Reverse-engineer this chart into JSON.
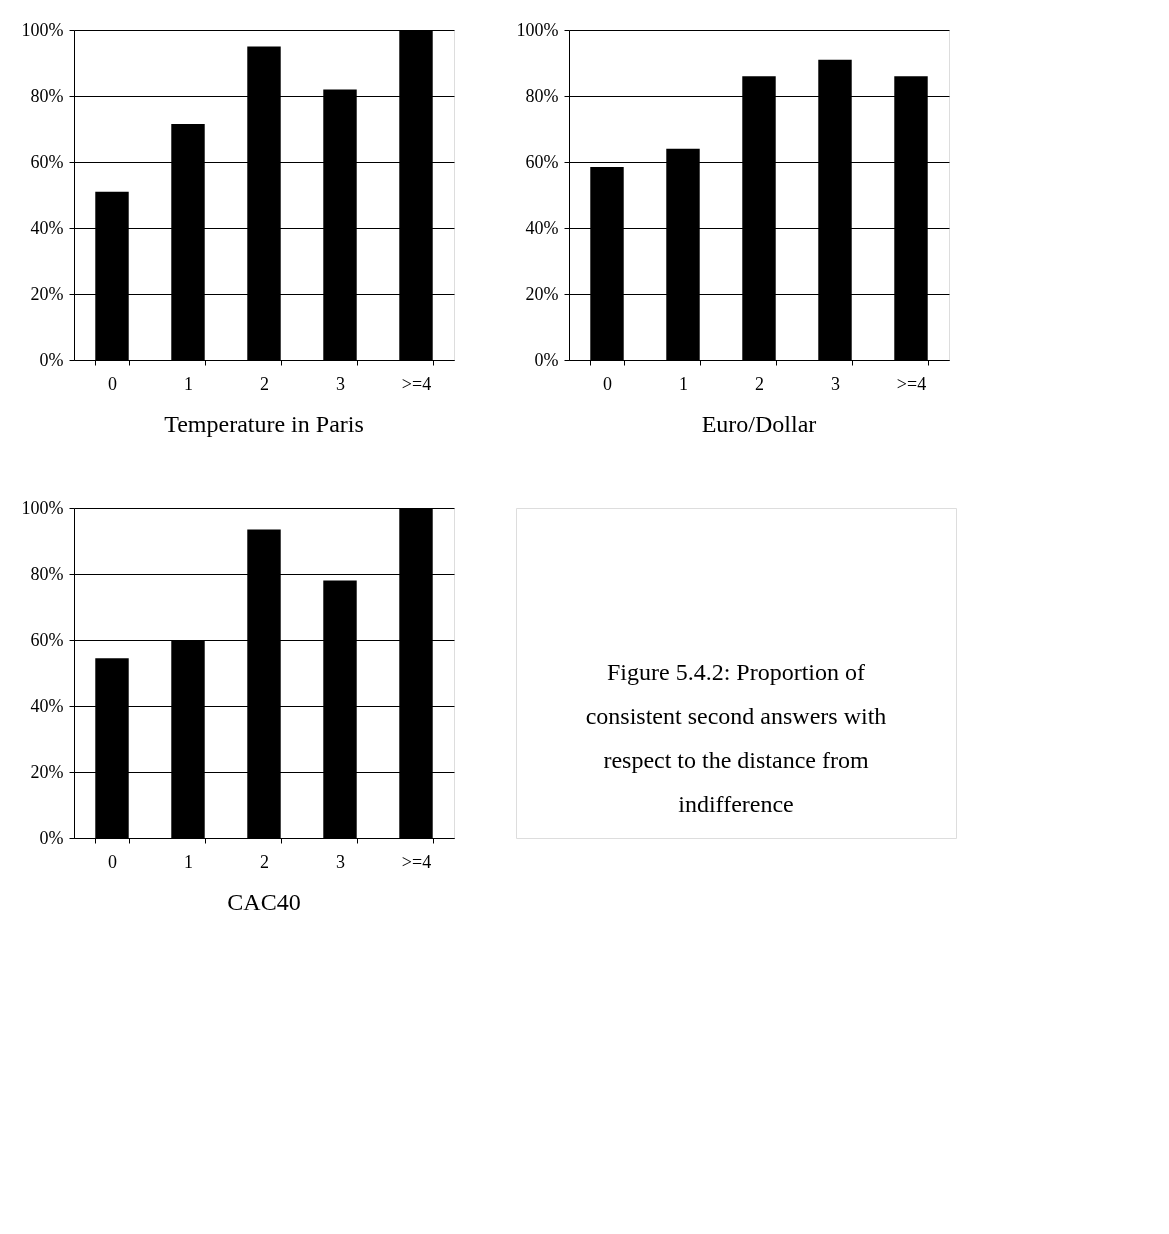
{
  "chart_data": [
    {
      "type": "bar",
      "title": "Temperature in Paris",
      "categories": [
        "0",
        "1",
        "2",
        "3",
        ">=4"
      ],
      "values": [
        51,
        71.5,
        95,
        82,
        100
      ],
      "color": "#000000",
      "ylim": [
        0,
        100
      ],
      "yticks": [
        {
          "value": 0,
          "label": "0%"
        },
        {
          "value": 20,
          "label": "20%"
        },
        {
          "value": 40,
          "label": "40%"
        },
        {
          "value": 60,
          "label": "60%"
        },
        {
          "value": 80,
          "label": "80%"
        },
        {
          "value": 100,
          "label": "100%"
        }
      ],
      "grid": "y"
    },
    {
      "type": "bar",
      "title": "Euro/Dollar",
      "categories": [
        "0",
        "1",
        "2",
        "3",
        ">=4"
      ],
      "values": [
        58.5,
        64,
        86,
        91,
        86
      ],
      "color": "#000000",
      "ylim": [
        0,
        100
      ],
      "yticks": [
        {
          "value": 0,
          "label": "0%"
        },
        {
          "value": 20,
          "label": "20%"
        },
        {
          "value": 40,
          "label": "40%"
        },
        {
          "value": 60,
          "label": "60%"
        },
        {
          "value": 80,
          "label": "80%"
        },
        {
          "value": 100,
          "label": "100%"
        }
      ],
      "grid": "y"
    },
    {
      "type": "bar",
      "title": "CAC40",
      "categories": [
        "0",
        "1",
        "2",
        "3",
        ">=4"
      ],
      "values": [
        54.5,
        60,
        93.5,
        78,
        100
      ],
      "color": "#000000",
      "ylim": [
        0,
        100
      ],
      "yticks": [
        {
          "value": 0,
          "label": "0%"
        },
        {
          "value": 20,
          "label": "20%"
        },
        {
          "value": 40,
          "label": "40%"
        },
        {
          "value": 60,
          "label": "60%"
        },
        {
          "value": 80,
          "label": "80%"
        },
        {
          "value": 100,
          "label": "100%"
        }
      ],
      "grid": "y"
    },
    {
      "type": "other",
      "annotations": [
        "Figure 5.4.2: Proportion of consistent second answers with respect to the distance from indifference"
      ]
    }
  ]
}
